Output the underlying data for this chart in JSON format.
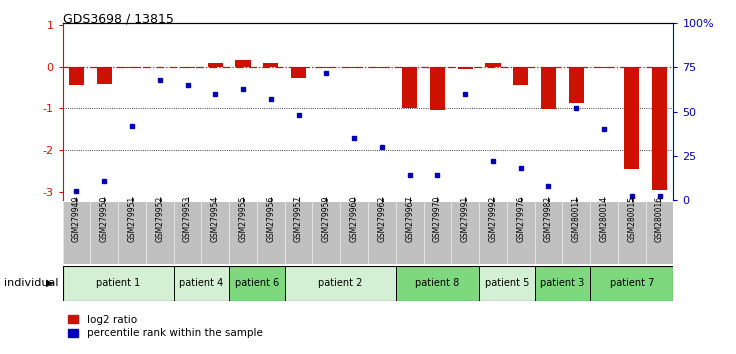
{
  "title": "GDS3698 / 13815",
  "samples": [
    "GSM279949",
    "GSM279950",
    "GSM279951",
    "GSM279952",
    "GSM279953",
    "GSM279954",
    "GSM279955",
    "GSM279956",
    "GSM279957",
    "GSM279959",
    "GSM279960",
    "GSM279962",
    "GSM279967",
    "GSM279970",
    "GSM279991",
    "GSM279992",
    "GSM279976",
    "GSM279982",
    "GSM280011",
    "GSM280014",
    "GSM280015",
    "GSM280016"
  ],
  "log2_ratio": [
    -0.45,
    -0.42,
    -0.04,
    0.0,
    -0.02,
    0.1,
    0.15,
    0.1,
    -0.28,
    -0.04,
    -0.03,
    -0.04,
    -1.0,
    -1.05,
    -0.06,
    0.1,
    -0.45,
    -1.02,
    -0.88,
    -0.04,
    -2.45,
    -2.95
  ],
  "percentile": [
    5,
    11,
    42,
    68,
    65,
    60,
    63,
    57,
    48,
    72,
    35,
    30,
    14,
    14,
    60,
    22,
    18,
    8,
    52,
    40,
    2,
    2
  ],
  "patients": [
    {
      "label": "patient 1",
      "start": 0,
      "end": 4,
      "color": "#d4f0d4"
    },
    {
      "label": "patient 4",
      "start": 4,
      "end": 6,
      "color": "#d4f0d4"
    },
    {
      "label": "patient 6",
      "start": 6,
      "end": 8,
      "color": "#7ed87e"
    },
    {
      "label": "patient 2",
      "start": 8,
      "end": 12,
      "color": "#d4f0d4"
    },
    {
      "label": "patient 8",
      "start": 12,
      "end": 15,
      "color": "#7ed87e"
    },
    {
      "label": "patient 5",
      "start": 15,
      "end": 17,
      "color": "#d4f0d4"
    },
    {
      "label": "patient 3",
      "start": 17,
      "end": 19,
      "color": "#7ed87e"
    },
    {
      "label": "patient 7",
      "start": 19,
      "end": 22,
      "color": "#7ed87e"
    }
  ],
  "bar_color": "#cc1100",
  "dot_color": "#0000bb",
  "ylim_left": [
    -3.2,
    1.05
  ],
  "ylim_right": [
    0,
    100
  ],
  "yticks_left": [
    1,
    0,
    -1,
    -2,
    -3
  ],
  "yticks_right": [
    100,
    75,
    50,
    25,
    0
  ],
  "sample_bg_color": "#c0c0c0",
  "bar_width": 0.55
}
